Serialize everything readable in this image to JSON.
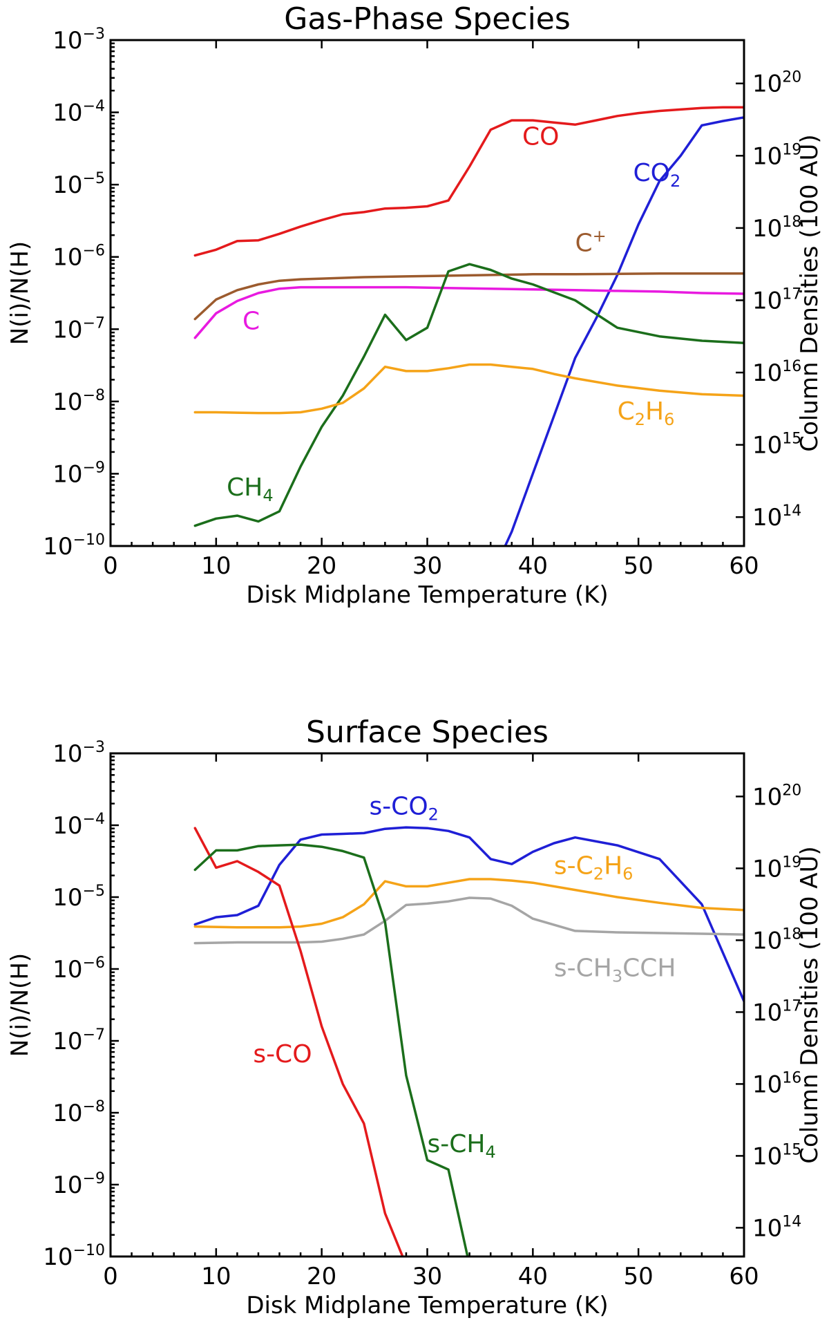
{
  "chart_data": [
    {
      "type": "line",
      "title": "Gas-Phase Species",
      "xlabel": "Disk Midplane Temperature (K)",
      "ylabel": "N(i)/N(H)",
      "y2label": "Column Densities (100 AU)",
      "xlim": [
        0,
        60
      ],
      "ylim_exp": [
        -10,
        -3
      ],
      "y2_exp_offset": 23.6,
      "xticks": [
        "0",
        "10",
        "20",
        "30",
        "40",
        "50",
        "60"
      ],
      "yticks": [
        {
          "base": "10",
          "exp": "−10"
        },
        {
          "base": "10",
          "exp": "−9"
        },
        {
          "base": "10",
          "exp": "−8"
        },
        {
          "base": "10",
          "exp": "−7"
        },
        {
          "base": "10",
          "exp": "−6"
        },
        {
          "base": "10",
          "exp": "−5"
        },
        {
          "base": "10",
          "exp": "−4"
        },
        {
          "base": "10",
          "exp": "−3"
        }
      ],
      "y2ticks": [
        {
          "base": "10",
          "exp": "14"
        },
        {
          "base": "10",
          "exp": "15"
        },
        {
          "base": "10",
          "exp": "16"
        },
        {
          "base": "10",
          "exp": "17"
        },
        {
          "base": "10",
          "exp": "18"
        },
        {
          "base": "10",
          "exp": "19"
        },
        {
          "base": "10",
          "exp": "20"
        }
      ],
      "series": [
        {
          "name": "CO",
          "label_parts": [
            {
              "t": "CO"
            }
          ],
          "color": "#e41a1c",
          "label_at": [
            39,
            -4.45
          ],
          "x": [
            8,
            10,
            12,
            14,
            16,
            18,
            20,
            22,
            24,
            26,
            28,
            30,
            32,
            34,
            36,
            38,
            40,
            42,
            44,
            46,
            48,
            50,
            52,
            54,
            56,
            58,
            60
          ],
          "log": [
            -5.98,
            -5.9,
            -5.78,
            -5.77,
            -5.68,
            -5.58,
            -5.49,
            -5.41,
            -5.38,
            -5.33,
            -5.32,
            -5.3,
            -5.22,
            -4.75,
            -4.24,
            -4.11,
            -4.11,
            -4.14,
            -4.17,
            -4.11,
            -4.05,
            -4.01,
            -3.98,
            -3.96,
            -3.94,
            -3.93,
            -3.93
          ]
        },
        {
          "name": "CO2",
          "label_parts": [
            {
              "t": "CO"
            },
            {
              "t": "2",
              "sub": true
            }
          ],
          "color": "#1f1fd6",
          "label_at": [
            49.5,
            -4.95
          ],
          "x": [
            37,
            38,
            40,
            42,
            44,
            46,
            48,
            50,
            52,
            54,
            56,
            58,
            60
          ],
          "log": [
            -10.12,
            -9.8,
            -9.0,
            -8.2,
            -7.4,
            -6.85,
            -6.25,
            -5.55,
            -4.95,
            -4.6,
            -4.18,
            -4.12,
            -4.07
          ]
        },
        {
          "name": "C+",
          "label_parts": [
            {
              "t": "C"
            },
            {
              "t": "+",
              "sup": true
            }
          ],
          "color": "#9c5b2e",
          "label_at": [
            44,
            -5.92
          ],
          "x": [
            8,
            10,
            12,
            14,
            16,
            18,
            20,
            24,
            28,
            32,
            36,
            40,
            44,
            48,
            52,
            56,
            60
          ],
          "log": [
            -6.86,
            -6.59,
            -6.46,
            -6.38,
            -6.33,
            -6.31,
            -6.3,
            -6.28,
            -6.27,
            -6.26,
            -6.25,
            -6.24,
            -6.24,
            -6.235,
            -6.23,
            -6.23,
            -6.23
          ]
        },
        {
          "name": "C",
          "label_parts": [
            {
              "t": "C"
            }
          ],
          "color": "#e81ae0",
          "label_at": [
            12.5,
            -7.0
          ],
          "x": [
            8,
            10,
            12,
            14,
            16,
            18,
            20,
            24,
            28,
            32,
            36,
            40,
            44,
            48,
            52,
            56,
            60
          ],
          "log": [
            -7.12,
            -6.78,
            -6.61,
            -6.5,
            -6.44,
            -6.42,
            -6.42,
            -6.42,
            -6.42,
            -6.43,
            -6.44,
            -6.45,
            -6.46,
            -6.47,
            -6.48,
            -6.5,
            -6.51
          ]
        },
        {
          "name": "CH4",
          "label_parts": [
            {
              "t": "CH"
            },
            {
              "t": "4",
              "sub": true
            }
          ],
          "color": "#1b6e1b",
          "label_at": [
            11,
            -9.3
          ],
          "x": [
            8,
            10,
            12,
            14,
            16,
            18,
            20,
            22,
            24,
            26,
            28,
            30,
            32,
            34,
            36,
            38,
            40,
            44,
            48,
            52,
            56,
            60
          ],
          "log": [
            -9.72,
            -9.62,
            -9.58,
            -9.66,
            -9.52,
            -8.9,
            -8.35,
            -7.92,
            -7.38,
            -6.8,
            -7.15,
            -6.98,
            -6.2,
            -6.1,
            -6.18,
            -6.3,
            -6.38,
            -6.6,
            -6.98,
            -7.1,
            -7.16,
            -7.19
          ]
        },
        {
          "name": "C2H6",
          "label_parts": [
            {
              "t": "C"
            },
            {
              "t": "2",
              "sub": true
            },
            {
              "t": "H"
            },
            {
              "t": "6",
              "sub": true
            }
          ],
          "color": "#f5a318",
          "label_at": [
            48,
            -8.25
          ],
          "x": [
            8,
            10,
            12,
            14,
            16,
            18,
            20,
            22,
            24,
            26,
            28,
            30,
            32,
            34,
            36,
            38,
            40,
            42,
            44,
            48,
            52,
            56,
            60
          ],
          "log": [
            -8.15,
            -8.15,
            -8.155,
            -8.16,
            -8.16,
            -8.15,
            -8.1,
            -8.02,
            -7.82,
            -7.52,
            -7.58,
            -7.58,
            -7.54,
            -7.49,
            -7.49,
            -7.52,
            -7.55,
            -7.62,
            -7.68,
            -7.78,
            -7.85,
            -7.9,
            -7.92
          ]
        }
      ]
    },
    {
      "type": "line",
      "title": "Surface Species",
      "xlabel": "Disk Midplane Temperature (K)",
      "ylabel": "N(i)/N(H)",
      "y2label": "Column Densities (100 AU)",
      "xlim": [
        0,
        60
      ],
      "ylim_exp": [
        -10,
        -3
      ],
      "y2_exp_offset": 23.6,
      "xticks": [
        "0",
        "10",
        "20",
        "30",
        "40",
        "50",
        "60"
      ],
      "yticks": [
        {
          "base": "10",
          "exp": "−10"
        },
        {
          "base": "10",
          "exp": "−9"
        },
        {
          "base": "10",
          "exp": "−8"
        },
        {
          "base": "10",
          "exp": "−7"
        },
        {
          "base": "10",
          "exp": "−6"
        },
        {
          "base": "10",
          "exp": "−5"
        },
        {
          "base": "10",
          "exp": "−4"
        },
        {
          "base": "10",
          "exp": "−3"
        }
      ],
      "y2ticks": [
        {
          "base": "10",
          "exp": "14"
        },
        {
          "base": "10",
          "exp": "15"
        },
        {
          "base": "10",
          "exp": "16"
        },
        {
          "base": "10",
          "exp": "17"
        },
        {
          "base": "10",
          "exp": "18"
        },
        {
          "base": "10",
          "exp": "19"
        },
        {
          "base": "10",
          "exp": "20"
        }
      ],
      "series": [
        {
          "name": "s-CO2",
          "label_parts": [
            {
              "t": "s-CO"
            },
            {
              "t": "2",
              "sub": true
            }
          ],
          "color": "#1f1fd6",
          "label_at": [
            24.5,
            -3.85
          ],
          "x": [
            8,
            10,
            12,
            14,
            16,
            18,
            20,
            22,
            24,
            26,
            28,
            30,
            32,
            34,
            36,
            38,
            40,
            42,
            44,
            48,
            52,
            56,
            60
          ],
          "log": [
            -5.38,
            -5.28,
            -5.25,
            -5.12,
            -4.55,
            -4.2,
            -4.13,
            -4.12,
            -4.11,
            -4.05,
            -4.03,
            -4.04,
            -4.08,
            -4.17,
            -4.47,
            -4.54,
            -4.37,
            -4.25,
            -4.17,
            -4.28,
            -4.47,
            -5.1,
            -6.45
          ]
        },
        {
          "name": "s-C2H6",
          "label_parts": [
            {
              "t": "s-C"
            },
            {
              "t": "2",
              "sub": true
            },
            {
              "t": "H"
            },
            {
              "t": "6",
              "sub": true
            }
          ],
          "color": "#f5a318",
          "label_at": [
            42,
            -4.68
          ],
          "x": [
            8,
            12,
            16,
            18,
            20,
            22,
            24,
            26,
            28,
            30,
            32,
            34,
            36,
            38,
            40,
            44,
            48,
            52,
            56,
            60
          ],
          "log": [
            -5.41,
            -5.42,
            -5.42,
            -5.41,
            -5.37,
            -5.28,
            -5.1,
            -4.78,
            -4.85,
            -4.85,
            -4.8,
            -4.75,
            -4.75,
            -4.77,
            -4.8,
            -4.9,
            -5.0,
            -5.08,
            -5.15,
            -5.18
          ]
        },
        {
          "name": "s-CH3CCH",
          "label_parts": [
            {
              "t": "s-CH"
            },
            {
              "t": "3",
              "sub": true
            },
            {
              "t": "CCH"
            }
          ],
          "color": "#a5a5a5",
          "label_at": [
            42,
            -6.1
          ],
          "x": [
            8,
            12,
            16,
            18,
            20,
            22,
            24,
            26,
            28,
            30,
            32,
            34,
            36,
            38,
            40,
            44,
            48,
            52,
            56,
            60
          ],
          "log": [
            -5.64,
            -5.63,
            -5.63,
            -5.63,
            -5.62,
            -5.58,
            -5.52,
            -5.33,
            -5.11,
            -5.09,
            -5.06,
            -5.01,
            -5.02,
            -5.12,
            -5.3,
            -5.47,
            -5.49,
            -5.5,
            -5.51,
            -5.52
          ]
        },
        {
          "name": "s-CO",
          "label_parts": [
            {
              "t": "s-CO"
            }
          ],
          "color": "#e41a1c",
          "label_at": [
            13.5,
            -7.3
          ],
          "x": [
            8,
            10,
            12,
            14,
            16,
            18,
            20,
            22,
            24,
            26,
            28
          ],
          "log": [
            -4.04,
            -4.59,
            -4.5,
            -4.65,
            -4.84,
            -5.75,
            -6.8,
            -7.6,
            -8.15,
            -9.4,
            -10.12
          ]
        },
        {
          "name": "s-CH4",
          "label_parts": [
            {
              "t": "s-CH"
            },
            {
              "t": "4",
              "sub": true
            }
          ],
          "color": "#1b6e1b",
          "label_at": [
            30,
            -8.55
          ],
          "x": [
            8,
            10,
            12,
            14,
            16,
            18,
            20,
            22,
            24,
            26,
            28,
            30,
            32,
            34
          ],
          "log": [
            -4.62,
            -4.35,
            -4.35,
            -4.29,
            -4.28,
            -4.27,
            -4.3,
            -4.36,
            -4.45,
            -5.35,
            -7.48,
            -8.66,
            -8.79,
            -10.12
          ]
        }
      ]
    }
  ]
}
